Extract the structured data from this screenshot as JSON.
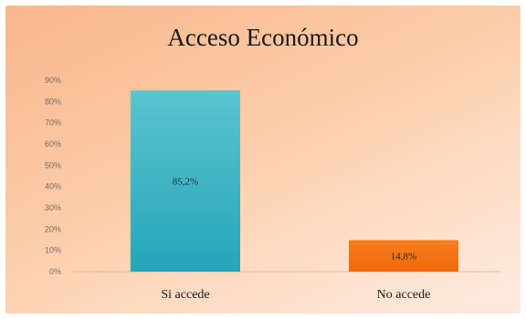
{
  "chart_data": {
    "type": "bar",
    "title": "Acceso Económico",
    "categories": [
      "Si accede",
      "No accede"
    ],
    "values": [
      85.2,
      14.8
    ],
    "data_labels": [
      "85,2%",
      "14,8%"
    ],
    "colors": [
      "#3bb3c5",
      "#f47414"
    ],
    "ylim": [
      0,
      90
    ],
    "yticks": [
      "0%",
      "10%",
      "20%",
      "30%",
      "40%",
      "50%",
      "60%",
      "70%",
      "80%",
      "90%"
    ],
    "grid": false,
    "legend": "none"
  }
}
